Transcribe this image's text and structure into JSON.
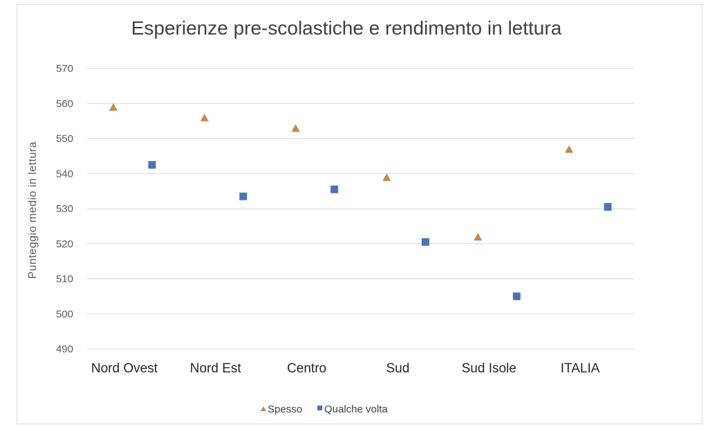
{
  "chart_data": {
    "type": "scatter",
    "title": "Esperienze pre-scolastiche e rendimento in lettura",
    "ylabel": "Punteggio medio in lettura",
    "xlabel": "",
    "categories": [
      "Nord Ovest",
      "Nord Est",
      "Centro",
      "Sud",
      "Sud Isole",
      "ITALIA"
    ],
    "ylim": [
      490,
      570
    ],
    "yticks": [
      490,
      500,
      510,
      520,
      530,
      540,
      550,
      560,
      570
    ],
    "grid": true,
    "legend_position": "bottom",
    "series": [
      {
        "name": "Spesso",
        "marker": "triangle",
        "color": "#c9874a",
        "values": [
          559,
          556,
          553,
          539,
          522,
          547
        ]
      },
      {
        "name": "Qualche volta",
        "marker": "square",
        "color": "#4a74b8",
        "values": [
          542.5,
          533.5,
          535.5,
          520.5,
          505,
          530.5
        ]
      }
    ]
  }
}
